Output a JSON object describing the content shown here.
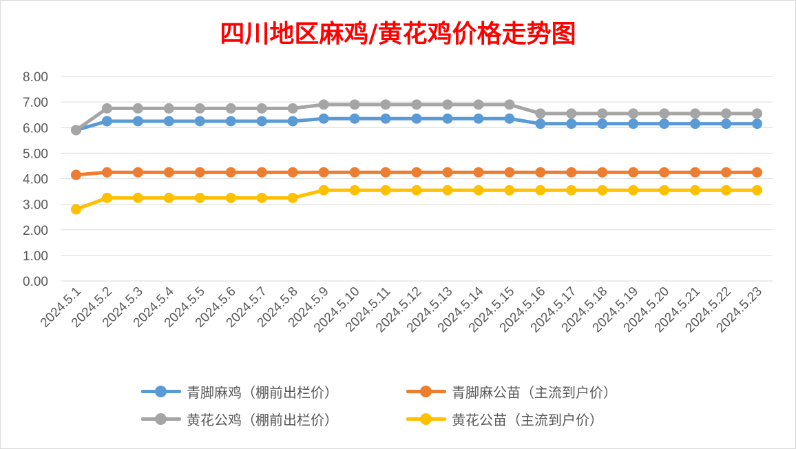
{
  "title": "四川地区麻鸡/黄花鸡价格走势图",
  "chart_data": {
    "type": "line",
    "title": "四川地区麻鸡/黄花鸡价格走势图",
    "categories": [
      "2024.5.1",
      "2024.5.2",
      "2024.5.3",
      "2024.5.4",
      "2024.5.5",
      "2024.5.6",
      "2024.5.7",
      "2024.5.8",
      "2024.5.9",
      "2024.5.10",
      "2024.5.11",
      "2024.5.12",
      "2024.5.13",
      "2024.5.14",
      "2024.5.15",
      "2024.5.16",
      "2024.5.17",
      "2024.5.18",
      "2024.5.19",
      "2024.5.20",
      "2024.5.21",
      "2024.5.22",
      "2024.5.23"
    ],
    "y_ticks": [
      "0.00",
      "1.00",
      "2.00",
      "3.00",
      "4.00",
      "5.00",
      "6.00",
      "7.00",
      "8.00"
    ],
    "ylim": [
      0,
      8
    ],
    "grid": true,
    "legend_position": "bottom",
    "series": [
      {
        "name": "青脚麻鸡（棚前出栏价）",
        "color": "#5b9bd5",
        "values": [
          5.9,
          6.25,
          6.25,
          6.25,
          6.25,
          6.25,
          6.25,
          6.25,
          6.35,
          6.35,
          6.35,
          6.35,
          6.35,
          6.35,
          6.35,
          6.15,
          6.15,
          6.15,
          6.15,
          6.15,
          6.15,
          6.15,
          6.15
        ]
      },
      {
        "name": "青脚麻公苗（主流到户价）",
        "color": "#ed7d31",
        "values": [
          4.15,
          4.25,
          4.25,
          4.25,
          4.25,
          4.25,
          4.25,
          4.25,
          4.25,
          4.25,
          4.25,
          4.25,
          4.25,
          4.25,
          4.25,
          4.25,
          4.25,
          4.25,
          4.25,
          4.25,
          4.25,
          4.25,
          4.25
        ]
      },
      {
        "name": "黄花公鸡（棚前出栏价）",
        "color": "#a5a5a5",
        "values": [
          5.9,
          6.75,
          6.75,
          6.75,
          6.75,
          6.75,
          6.75,
          6.75,
          6.9,
          6.9,
          6.9,
          6.9,
          6.9,
          6.9,
          6.9,
          6.55,
          6.55,
          6.55,
          6.55,
          6.55,
          6.55,
          6.55,
          6.55
        ]
      },
      {
        "name": "黄花公苗（主流到户价）",
        "color": "#ffc000",
        "values": [
          2.8,
          3.25,
          3.25,
          3.25,
          3.25,
          3.25,
          3.25,
          3.25,
          3.55,
          3.55,
          3.55,
          3.55,
          3.55,
          3.55,
          3.55,
          3.55,
          3.55,
          3.55,
          3.55,
          3.55,
          3.55,
          3.55,
          3.55
        ]
      }
    ]
  }
}
